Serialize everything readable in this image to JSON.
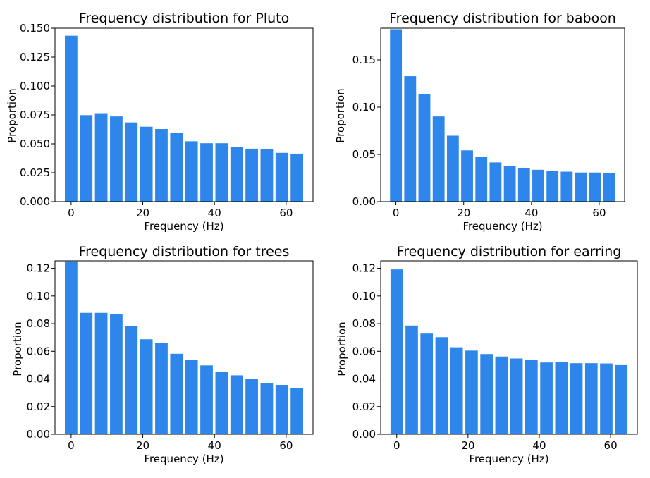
{
  "chart_data": [
    {
      "type": "bar",
      "title": "Frequency distribution for Pluto",
      "xlabel": "Frequency (Hz)",
      "ylabel": "Proportion",
      "x": [
        0,
        4.2,
        8.4,
        12.6,
        16.8,
        21,
        25.2,
        29.4,
        33.6,
        37.8,
        42,
        46.2,
        50.4,
        54.6,
        58.8,
        63
      ],
      "values": [
        0.1435,
        0.0748,
        0.0765,
        0.0737,
        0.0685,
        0.0648,
        0.0628,
        0.0595,
        0.0522,
        0.0505,
        0.0505,
        0.0473,
        0.0458,
        0.0452,
        0.0422,
        0.0415
      ],
      "color": "#2e86eb",
      "xlim": [
        -4.5,
        67.5
      ],
      "ylim": [
        0,
        0.15
      ],
      "xticks": [
        0,
        20,
        40,
        60
      ],
      "xtick_labels": [
        "0",
        "20",
        "40",
        "60"
      ],
      "yticks": [
        0,
        0.025,
        0.05,
        0.075,
        0.1,
        0.125,
        0.15
      ],
      "ytick_labels": [
        "0.000",
        "0.025",
        "0.050",
        "0.075",
        "0.100",
        "0.125",
        "0.150"
      ],
      "grid": false
    },
    {
      "type": "bar",
      "title": "Frequency distribution for baboon",
      "xlabel": "Frequency (Hz)",
      "ylabel": "Proportion",
      "x": [
        0,
        4.2,
        8.4,
        12.6,
        16.8,
        21,
        25.2,
        29.4,
        33.6,
        37.8,
        42,
        46.2,
        50.4,
        54.6,
        58.8,
        63
      ],
      "values": [
        0.1825,
        0.1328,
        0.1136,
        0.0902,
        0.0698,
        0.0543,
        0.0474,
        0.0415,
        0.0376,
        0.0357,
        0.0337,
        0.0327,
        0.0317,
        0.0308,
        0.0308,
        0.0301
      ],
      "color": "#2e86eb",
      "xlim": [
        -4.5,
        67.5
      ],
      "ylim": [
        0,
        0.1836
      ],
      "xticks": [
        0,
        20,
        40,
        60
      ],
      "xtick_labels": [
        "0",
        "20",
        "40",
        "60"
      ],
      "yticks": [
        0,
        0.05,
        0.1,
        0.15
      ],
      "ytick_labels": [
        "0.00",
        "0.05",
        "0.10",
        "0.15"
      ],
      "grid": false
    },
    {
      "type": "bar",
      "title": "Frequency distribution for trees",
      "xlabel": "Frequency (Hz)",
      "ylabel": "Proportion",
      "x": [
        0,
        4.2,
        8.4,
        12.6,
        16.8,
        21,
        25.2,
        29.4,
        33.6,
        37.8,
        42,
        46.2,
        50.4,
        54.6,
        58.8,
        63
      ],
      "values": [
        0.125,
        0.0878,
        0.0878,
        0.0869,
        0.0784,
        0.0687,
        0.066,
        0.0582,
        0.0538,
        0.0498,
        0.0453,
        0.0426,
        0.0402,
        0.0372,
        0.0357,
        0.0335
      ],
      "color": "#2e86eb",
      "xlim": [
        -4.5,
        67.5
      ],
      "ylim": [
        0,
        0.1254
      ],
      "xticks": [
        0,
        20,
        40,
        60
      ],
      "xtick_labels": [
        "0",
        "20",
        "40",
        "60"
      ],
      "yticks": [
        0,
        0.02,
        0.04,
        0.06,
        0.08,
        0.1,
        0.12
      ],
      "ytick_labels": [
        "0.00",
        "0.02",
        "0.04",
        "0.06",
        "0.08",
        "0.10",
        "0.12"
      ],
      "grid": false
    },
    {
      "type": "bar",
      "title": "Frequency distribution for earring",
      "xlabel": "Frequency (Hz)",
      "ylabel": "Proportion",
      "x": [
        0,
        4.2,
        8.4,
        12.6,
        16.8,
        21,
        25.2,
        29.4,
        33.6,
        37.8,
        42,
        46.2,
        50.4,
        54.6,
        58.8,
        63
      ],
      "values": [
        0.1192,
        0.0786,
        0.0728,
        0.0702,
        0.0629,
        0.0605,
        0.058,
        0.0562,
        0.0548,
        0.0536,
        0.0519,
        0.0521,
        0.0514,
        0.0514,
        0.0512,
        0.05
      ],
      "color": "#2e86eb",
      "xlim": [
        -4.5,
        67.5
      ],
      "ylim": [
        0,
        0.1254
      ],
      "xticks": [
        0,
        20,
        40,
        60
      ],
      "xtick_labels": [
        "0",
        "20",
        "40",
        "60"
      ],
      "yticks": [
        0,
        0.02,
        0.04,
        0.06,
        0.08,
        0.1,
        0.12
      ],
      "ytick_labels": [
        "0.00",
        "0.02",
        "0.04",
        "0.06",
        "0.08",
        "0.10",
        "0.12"
      ],
      "grid": false
    }
  ]
}
